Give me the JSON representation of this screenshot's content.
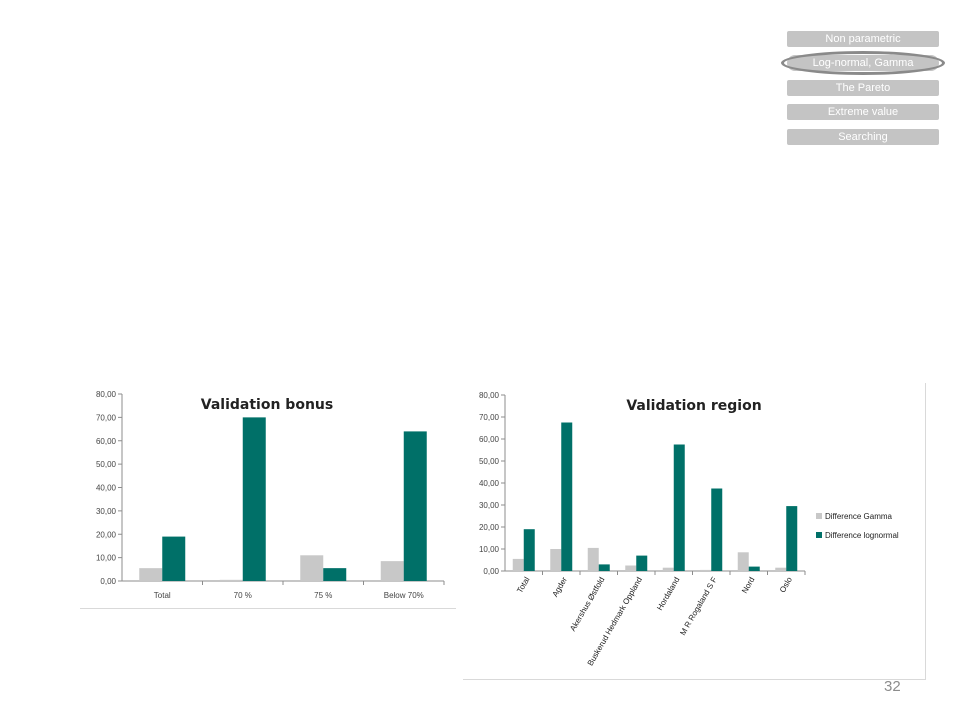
{
  "nav": {
    "items": [
      {
        "label": "Non parametric",
        "active": false
      },
      {
        "label": "Log-normal, Gamma",
        "active": true
      },
      {
        "label": "The Pareto",
        "active": false
      },
      {
        "label": "Extreme value",
        "active": false
      },
      {
        "label": "Searching",
        "active": false
      }
    ]
  },
  "colors": {
    "gamma": "#c8c8c8",
    "lognormal": "#007068",
    "nav_pill": "#c4c4c4"
  },
  "chart_data": [
    {
      "type": "bar",
      "title": "Validation bonus",
      "categories": [
        "Total",
        "70 %",
        "75 %",
        "Below 70%"
      ],
      "series": [
        {
          "values": [
            5.5,
            0.5,
            11.0,
            8.5
          ],
          "color": "#c8c8c8"
        },
        {
          "values": [
            19.0,
            70.0,
            5.5,
            64.0
          ],
          "color": "#007068"
        }
      ],
      "yticks": [
        "0,00",
        "10,00",
        "20,00",
        "30,00",
        "40,00",
        "50,00",
        "60,00",
        "70,00",
        "80,00"
      ],
      "ylim": [
        0,
        80
      ],
      "grid": false,
      "legend": "none"
    },
    {
      "type": "bar",
      "title": "Validation region",
      "categories": [
        "Total",
        "Agder",
        "Akershus Østfold",
        "Buskerud Hedmark Oppland",
        "Hordaland",
        "M R Rogaland S F",
        "Nord",
        "Oslo"
      ],
      "series": [
        {
          "name": "Difference Gamma",
          "values": [
            5.5,
            10.0,
            10.5,
            2.5,
            1.5,
            0.5,
            8.5,
            1.5
          ],
          "color": "#c8c8c8"
        },
        {
          "name": "Difference lognormal",
          "values": [
            19.0,
            67.5,
            3.0,
            7.0,
            57.5,
            37.5,
            2.0,
            29.5
          ],
          "color": "#007068"
        }
      ],
      "yticks": [
        "0,00",
        "10,00",
        "20,00",
        "30,00",
        "40,00",
        "50,00",
        "60,00",
        "70,00",
        "80,00"
      ],
      "ylim": [
        0,
        80
      ],
      "grid": false,
      "legend": "right"
    }
  ],
  "page_number": "32"
}
